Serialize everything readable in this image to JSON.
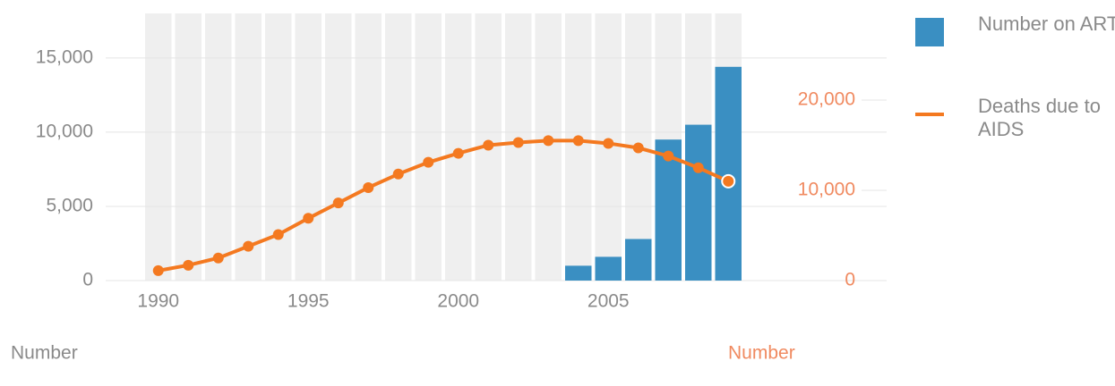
{
  "chart_data": {
    "type": "bar-line",
    "x": [
      1990,
      1991,
      1992,
      1993,
      1994,
      1995,
      1996,
      1997,
      1998,
      1999,
      2000,
      2001,
      2002,
      2003,
      2004,
      2005,
      2006,
      2007,
      2008,
      2009
    ],
    "xlim": [
      1989.5,
      2009.5
    ],
    "xticks": [
      1990,
      1995,
      2000,
      2005
    ],
    "ylim": [
      0,
      18000
    ],
    "yticks": [
      0,
      {
        "value": 5000,
        "label": "5,000"
      },
      {
        "value": 10000,
        "label": "10,000"
      },
      {
        "value": 15000,
        "label": "15,000"
      }
    ],
    "y2lim": [
      0,
      29600
    ],
    "y2ticks": [
      0,
      {
        "value": 10000,
        "label": "10,000"
      },
      {
        "value": 20000,
        "label": "20,000"
      }
    ],
    "ylabel": "Number",
    "y2label": "Number",
    "series": [
      {
        "name": "Number on ART",
        "color": "#3a8fc2",
        "kind": "bar",
        "values": [
          null,
          null,
          null,
          null,
          null,
          null,
          null,
          null,
          null,
          null,
          null,
          null,
          null,
          null,
          1000,
          1600,
          2800,
          9500,
          10500,
          14400
        ]
      },
      {
        "name": "Deaths due to AIDS",
        "color": "#f47920",
        "kind": "line",
        "axis": "y2",
        "values": [
          1100,
          1700,
          2500,
          3800,
          5100,
          6900,
          8600,
          10300,
          11800,
          13100,
          14100,
          15000,
          15300,
          15500,
          15500,
          15200,
          14700,
          13800,
          12500,
          11000
        ]
      }
    ],
    "grid": true
  }
}
